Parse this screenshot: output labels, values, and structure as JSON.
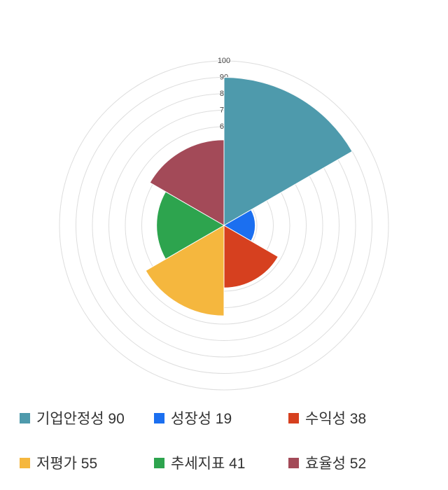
{
  "chart_data": {
    "type": "rose",
    "title": "",
    "categories": [
      "기업안정성",
      "성장성",
      "수익성",
      "저평가",
      "추세지표",
      "효율성"
    ],
    "values": [
      90,
      19,
      38,
      55,
      41,
      52
    ],
    "colors": [
      "#4e9aac",
      "#1b6ff0",
      "#d6401f",
      "#f5b73e",
      "#2da44e",
      "#a34a58"
    ],
    "rmax": 100,
    "grid_step": 10,
    "tick_values": [
      60,
      70,
      80,
      90,
      100
    ],
    "sector_span_deg": 60,
    "start_angle_deg": 0,
    "direction": "clockwise",
    "grid": true,
    "grid_color": "#dddddd",
    "tick_color": "#444444",
    "legend_position": "bottom"
  },
  "legend": {
    "items": [
      {
        "label": "기업안정성",
        "value": "90",
        "color": "#4e9aac"
      },
      {
        "label": "성장성",
        "value": "19",
        "color": "#1b6ff0"
      },
      {
        "label": "수익성",
        "value": "38",
        "color": "#d6401f"
      },
      {
        "label": "저평가",
        "value": "55",
        "color": "#f5b73e"
      },
      {
        "label": "추세지표",
        "value": "41",
        "color": "#2da44e"
      },
      {
        "label": "효율성",
        "value": "52",
        "color": "#a34a58"
      }
    ]
  }
}
